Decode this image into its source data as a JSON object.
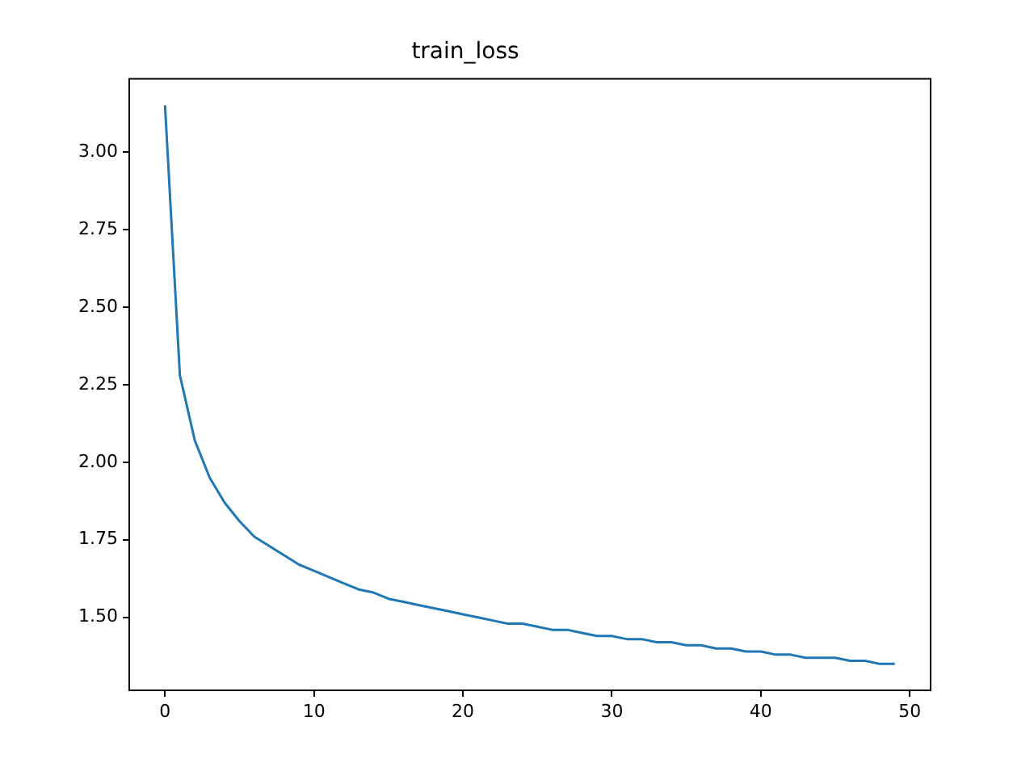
{
  "chart_data": {
    "type": "line",
    "title": "train_loss",
    "x": [
      0,
      1,
      2,
      3,
      4,
      5,
      6,
      7,
      8,
      9,
      10,
      11,
      12,
      13,
      14,
      15,
      16,
      17,
      18,
      19,
      20,
      21,
      22,
      23,
      24,
      25,
      26,
      27,
      28,
      29,
      30,
      31,
      32,
      33,
      34,
      35,
      36,
      37,
      38,
      39,
      40,
      41,
      42,
      43,
      44,
      45,
      46,
      47,
      48,
      49
    ],
    "series": [
      {
        "color": "#1f77b4",
        "values": [
          3.15,
          2.28,
          2.07,
          1.95,
          1.87,
          1.81,
          1.76,
          1.73,
          1.7,
          1.67,
          1.65,
          1.63,
          1.61,
          1.59,
          1.58,
          1.56,
          1.55,
          1.54,
          1.53,
          1.52,
          1.51,
          1.5,
          1.49,
          1.48,
          1.48,
          1.47,
          1.46,
          1.46,
          1.45,
          1.44,
          1.44,
          1.43,
          1.43,
          1.42,
          1.42,
          1.41,
          1.41,
          1.4,
          1.4,
          1.39,
          1.39,
          1.38,
          1.38,
          1.37,
          1.37,
          1.37,
          1.36,
          1.36,
          1.35,
          1.35
        ]
      }
    ],
    "xlim": [
      -2.4,
      51.4
    ],
    "xticks": [
      0,
      10,
      20,
      30,
      40,
      50
    ],
    "ylim": [
      1.265,
      3.235
    ],
    "yticks": [
      {
        "value": 1.5,
        "label": "1.50"
      },
      {
        "value": 1.75,
        "label": "1.75"
      },
      {
        "value": 2.0,
        "label": "2.00"
      },
      {
        "value": 2.25,
        "label": "2.25"
      },
      {
        "value": 2.5,
        "label": "2.50"
      },
      {
        "value": 2.75,
        "label": "2.75"
      },
      {
        "value": 3.0,
        "label": "3.00"
      }
    ],
    "grid": false,
    "legend": false,
    "marker": "none",
    "line_style": "solid"
  }
}
